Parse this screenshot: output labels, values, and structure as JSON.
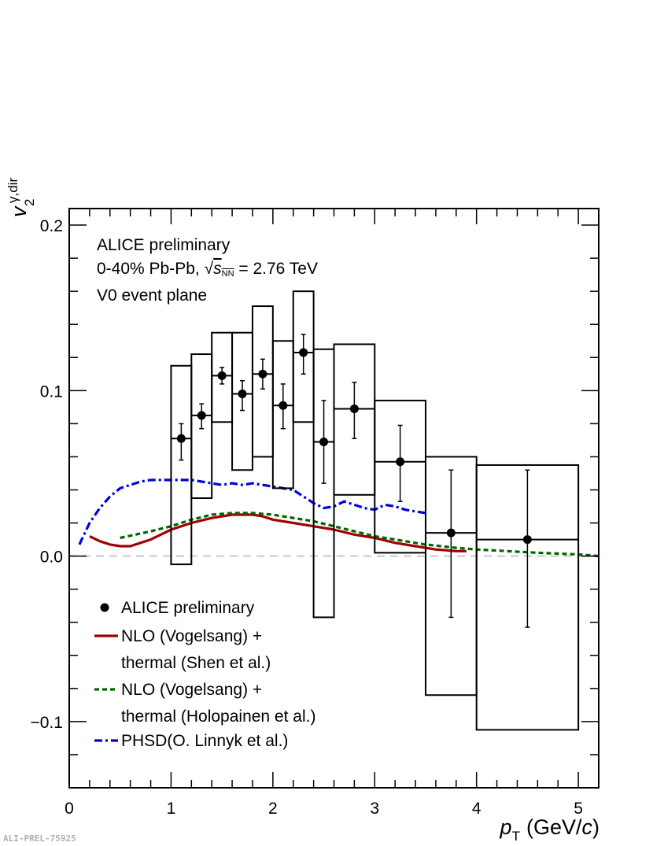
{
  "annotations": {
    "line1": "ALICE preliminary",
    "line2_prefix": "0-40% Pb-Pb,",
    "line2_sqrt_symbol": "√",
    "line2_s": "s",
    "line2_sub": "NN",
    "line2_suffix": "= 2.76 TeV",
    "line3": "V0 event plane"
  },
  "footer": "ALI-PREL-75925",
  "chart_data": {
    "type": "scatter",
    "xlabel": {
      "main": "p",
      "sub": "T",
      "unit_prefix": "(GeV/",
      "unit_var": "c",
      "unit_suffix": ")"
    },
    "ylabel": {
      "main": "v",
      "sub": "2",
      "sup": "γ,dir"
    },
    "xlim": [
      0,
      5.2
    ],
    "ylim": [
      -0.14,
      0.21
    ],
    "xticks": [
      0,
      1,
      2,
      3,
      4,
      5
    ],
    "yticks": [
      -0.1,
      0.0,
      0.1,
      0.2
    ],
    "ytick_labels": [
      "−0.1",
      "0.0",
      "0.1",
      "0.2"
    ],
    "zero_line": {
      "y": 0,
      "style": "dashed",
      "color": "#c8c8c8"
    },
    "points": {
      "name": "ALICE preliminary",
      "x": [
        1.1,
        1.3,
        1.5,
        1.7,
        1.9,
        2.1,
        2.3,
        2.5,
        2.8,
        3.25,
        3.75,
        4.5
      ],
      "y": [
        0.071,
        0.085,
        0.109,
        0.098,
        0.11,
        0.091,
        0.123,
        0.069,
        0.089,
        0.057,
        0.014,
        0.01
      ],
      "stat_lo": [
        0.058,
        0.077,
        0.104,
        0.088,
        0.101,
        0.077,
        0.11,
        0.044,
        0.071,
        0.033,
        -0.037,
        -0.043
      ],
      "stat_hi": [
        0.08,
        0.092,
        0.114,
        0.106,
        0.119,
        0.104,
        0.134,
        0.094,
        0.105,
        0.079,
        0.052,
        0.052
      ],
      "sys_xlo": [
        1.0,
        1.2,
        1.4,
        1.6,
        1.8,
        2.0,
        2.2,
        2.4,
        2.6,
        3.0,
        3.5,
        4.0
      ],
      "sys_xhi": [
        1.2,
        1.4,
        1.6,
        1.8,
        2.0,
        2.2,
        2.4,
        2.6,
        3.0,
        3.5,
        4.0,
        5.0
      ],
      "sys_lo": [
        -0.005,
        0.035,
        0.081,
        0.052,
        0.06,
        0.041,
        0.081,
        -0.037,
        0.037,
        0.002,
        -0.084,
        -0.105
      ],
      "sys_hi": [
        0.115,
        0.122,
        0.135,
        0.135,
        0.151,
        0.13,
        0.16,
        0.125,
        0.128,
        0.094,
        0.06,
        0.055
      ],
      "color": "#000000"
    },
    "series": [
      {
        "name": "NLO (Vogelsang) + thermal (Shen et al.)",
        "style": "solid",
        "color": "#a00000",
        "x": [
          0.2,
          0.3,
          0.4,
          0.5,
          0.6,
          0.7,
          0.8,
          0.9,
          1.0,
          1.2,
          1.4,
          1.6,
          1.8,
          1.9,
          2.0,
          2.2,
          2.4,
          2.6,
          2.8,
          3.0,
          3.2,
          3.4,
          3.6,
          3.8,
          3.9
        ],
        "y": [
          0.012,
          0.009,
          0.007,
          0.006,
          0.006,
          0.008,
          0.01,
          0.013,
          0.016,
          0.02,
          0.023,
          0.025,
          0.025,
          0.024,
          0.022,
          0.02,
          0.018,
          0.016,
          0.013,
          0.011,
          0.008,
          0.006,
          0.004,
          0.003,
          0.003
        ]
      },
      {
        "name": "NLO (Vogelsang) + thermal (Holopainen et al.)",
        "style": "dotted",
        "color": "#006600",
        "x": [
          0.5,
          0.8,
          1.0,
          1.2,
          1.4,
          1.6,
          1.8,
          2.0,
          2.2,
          2.4,
          2.6,
          2.8,
          3.0,
          3.2,
          3.5,
          3.8,
          4.0,
          4.3,
          4.6,
          5.0,
          5.2
        ],
        "y": [
          0.011,
          0.015,
          0.018,
          0.022,
          0.025,
          0.026,
          0.026,
          0.025,
          0.023,
          0.021,
          0.018,
          0.015,
          0.012,
          0.01,
          0.007,
          0.005,
          0.004,
          0.003,
          0.002,
          0.001,
          0.0
        ]
      },
      {
        "name": "PHSD(O. Linnyk et al.)",
        "style": "dashdot",
        "color": "#0000dd",
        "x": [
          0.1,
          0.2,
          0.3,
          0.4,
          0.5,
          0.6,
          0.7,
          0.8,
          1.0,
          1.1,
          1.2,
          1.3,
          1.4,
          1.5,
          1.6,
          1.7,
          1.8,
          1.9,
          2.0,
          2.1,
          2.2,
          2.3,
          2.4,
          2.5,
          2.6,
          2.7,
          2.8,
          2.9,
          3.0,
          3.1,
          3.2,
          3.3,
          3.4,
          3.5
        ],
        "y": [
          0.007,
          0.02,
          0.029,
          0.036,
          0.041,
          0.043,
          0.045,
          0.046,
          0.046,
          0.046,
          0.046,
          0.045,
          0.044,
          0.043,
          0.044,
          0.043,
          0.044,
          0.043,
          0.042,
          0.041,
          0.04,
          0.036,
          0.032,
          0.029,
          0.03,
          0.033,
          0.031,
          0.029,
          0.028,
          0.031,
          0.03,
          0.028,
          0.027,
          0.026
        ]
      }
    ],
    "legend": {
      "placement": "bottom-left",
      "entries": [
        {
          "kind": "marker",
          "label": [
            "ALICE preliminary"
          ]
        },
        {
          "kind": "line",
          "style": "solid",
          "color": "#a00000",
          "label": [
            "NLO (Vogelsang) +",
            "thermal (Shen et al.)"
          ]
        },
        {
          "kind": "line",
          "style": "dotted",
          "color": "#006600",
          "label": [
            "NLO (Vogelsang) +",
            "thermal (Holopainen et al.)"
          ]
        },
        {
          "kind": "line",
          "style": "dashdot",
          "color": "#0000dd",
          "label": [
            "PHSD(O. Linnyk et al.)"
          ]
        }
      ]
    }
  }
}
